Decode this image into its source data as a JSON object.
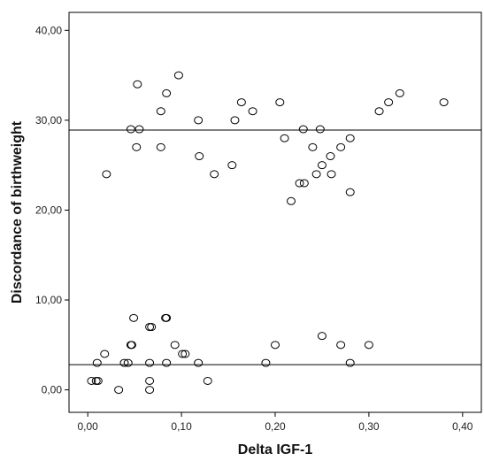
{
  "chart_data": {
    "type": "scatter",
    "xlabel": "Delta IGF-1",
    "ylabel": "Discordance of birthweight",
    "xlim": [
      -0.02,
      0.42
    ],
    "ylim": [
      -2.5,
      42
    ],
    "x_ticks": [
      0.0,
      0.1,
      0.2,
      0.3,
      0.4
    ],
    "x_tick_labels": [
      "0,00",
      "0,10",
      "0,20",
      "0,30",
      "0,40"
    ],
    "y_ticks": [
      0,
      10,
      20,
      30,
      40
    ],
    "y_tick_labels": [
      "0,00",
      "10,00",
      "20,00",
      "30,00",
      "40,00"
    ],
    "reference_lines_y": [
      28.9,
      2.8
    ],
    "grid": false,
    "marker": "open-circle",
    "points": [
      {
        "x": 0.02,
        "y": 24
      },
      {
        "x": 0.046,
        "y": 29
      },
      {
        "x": 0.052,
        "y": 27
      },
      {
        "x": 0.053,
        "y": 34
      },
      {
        "x": 0.055,
        "y": 29
      },
      {
        "x": 0.078,
        "y": 31
      },
      {
        "x": 0.078,
        "y": 27
      },
      {
        "x": 0.084,
        "y": 33
      },
      {
        "x": 0.097,
        "y": 35
      },
      {
        "x": 0.118,
        "y": 30
      },
      {
        "x": 0.119,
        "y": 26
      },
      {
        "x": 0.135,
        "y": 24
      },
      {
        "x": 0.154,
        "y": 25
      },
      {
        "x": 0.157,
        "y": 30
      },
      {
        "x": 0.164,
        "y": 32
      },
      {
        "x": 0.176,
        "y": 31
      },
      {
        "x": 0.205,
        "y": 32
      },
      {
        "x": 0.21,
        "y": 28
      },
      {
        "x": 0.217,
        "y": 21
      },
      {
        "x": 0.226,
        "y": 23
      },
      {
        "x": 0.23,
        "y": 29
      },
      {
        "x": 0.231,
        "y": 23
      },
      {
        "x": 0.24,
        "y": 27
      },
      {
        "x": 0.244,
        "y": 24
      },
      {
        "x": 0.248,
        "y": 29
      },
      {
        "x": 0.25,
        "y": 25
      },
      {
        "x": 0.259,
        "y": 26
      },
      {
        "x": 0.26,
        "y": 24
      },
      {
        "x": 0.27,
        "y": 27
      },
      {
        "x": 0.28,
        "y": 28
      },
      {
        "x": 0.28,
        "y": 22
      },
      {
        "x": 0.311,
        "y": 31
      },
      {
        "x": 0.321,
        "y": 32
      },
      {
        "x": 0.333,
        "y": 33
      },
      {
        "x": 0.38,
        "y": 32
      },
      {
        "x": 0.004,
        "y": 1
      },
      {
        "x": 0.009,
        "y": 1
      },
      {
        "x": 0.011,
        "y": 1
      },
      {
        "x": 0.01,
        "y": 3
      },
      {
        "x": 0.018,
        "y": 4
      },
      {
        "x": 0.033,
        "y": 0
      },
      {
        "x": 0.039,
        "y": 3
      },
      {
        "x": 0.043,
        "y": 3
      },
      {
        "x": 0.046,
        "y": 5
      },
      {
        "x": 0.047,
        "y": 5
      },
      {
        "x": 0.049,
        "y": 8
      },
      {
        "x": 0.066,
        "y": 7
      },
      {
        "x": 0.068,
        "y": 7
      },
      {
        "x": 0.066,
        "y": 3
      },
      {
        "x": 0.066,
        "y": 1
      },
      {
        "x": 0.066,
        "y": 0
      },
      {
        "x": 0.083,
        "y": 8
      },
      {
        "x": 0.084,
        "y": 8
      },
      {
        "x": 0.084,
        "y": 3
      },
      {
        "x": 0.093,
        "y": 5
      },
      {
        "x": 0.101,
        "y": 4
      },
      {
        "x": 0.104,
        "y": 4
      },
      {
        "x": 0.118,
        "y": 3
      },
      {
        "x": 0.128,
        "y": 1
      },
      {
        "x": 0.19,
        "y": 3
      },
      {
        "x": 0.2,
        "y": 5
      },
      {
        "x": 0.25,
        "y": 6
      },
      {
        "x": 0.27,
        "y": 5
      },
      {
        "x": 0.28,
        "y": 3
      },
      {
        "x": 0.3,
        "y": 5
      }
    ]
  }
}
